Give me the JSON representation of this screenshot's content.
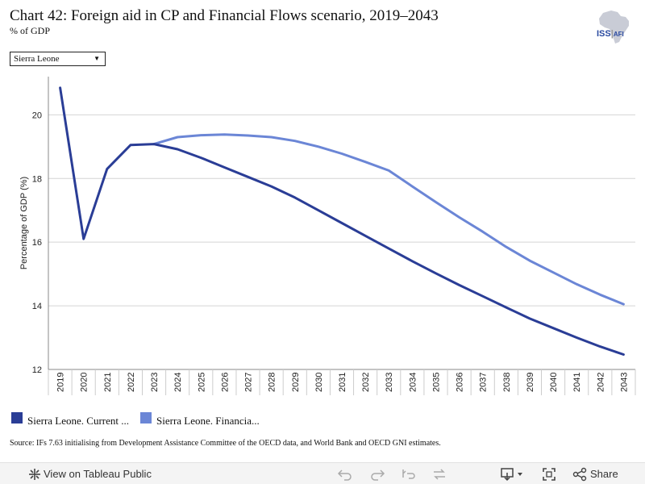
{
  "header": {
    "title": "Chart 42: Foreign aid in CP and Financial Flows scenario, 2019–2043",
    "subtitle": "% of GDP",
    "logo_text": "ISS|AFI",
    "logo_icon": "africa-map-icon"
  },
  "selector": {
    "value": "Sierra Leone",
    "arrow": "▼"
  },
  "chart_data": {
    "type": "line",
    "title": "Chart 42: Foreign aid in CP and Financial Flows scenario, 2019–2043",
    "ylabel": "Percentage of GDP (%)",
    "xlabel": "",
    "ylim": [
      12,
      21.2
    ],
    "yticks": [
      12,
      14,
      16,
      18,
      20
    ],
    "grid": true,
    "legend_position": "bottom-left",
    "x": [
      "2019",
      "2020",
      "2021",
      "2022",
      "2023",
      "2024",
      "2025",
      "2026",
      "2027",
      "2028",
      "2029",
      "2030",
      "2031",
      "2032",
      "2033",
      "2034",
      "2035",
      "2036",
      "2037",
      "2038",
      "2039",
      "2040",
      "2041",
      "2042",
      "2043"
    ],
    "series": [
      {
        "name": "Sierra Leone. Current ...",
        "color": "#2a3d96",
        "values": [
          20.85,
          16.1,
          18.3,
          19.05,
          19.08,
          18.92,
          18.65,
          18.35,
          18.05,
          17.75,
          17.4,
          17.0,
          16.6,
          16.2,
          15.8,
          15.4,
          15.02,
          14.65,
          14.3,
          13.95,
          13.6,
          13.3,
          13.0,
          12.72,
          12.47
        ]
      },
      {
        "name": "Sierra Leone. Financia...",
        "color": "#6b86d6",
        "values": [
          null,
          null,
          null,
          null,
          19.08,
          19.3,
          19.36,
          19.38,
          19.35,
          19.3,
          19.18,
          19.0,
          18.78,
          18.52,
          18.25,
          17.75,
          17.26,
          16.78,
          16.33,
          15.85,
          15.42,
          15.05,
          14.68,
          14.35,
          14.05
        ]
      }
    ]
  },
  "source": "Source: IFs 7.63 initialising from Development Assistance Committee of the OECD data, and World Bank and OECD GNI estimates.",
  "toolbar": {
    "view_label": "View on Tableau Public",
    "share_label": "Share",
    "icons": [
      "tableau-logo-icon",
      "undo-icon",
      "redo-icon",
      "revert-icon",
      "refresh-icon",
      "download-icon",
      "fullscreen-icon",
      "share-icon"
    ]
  }
}
